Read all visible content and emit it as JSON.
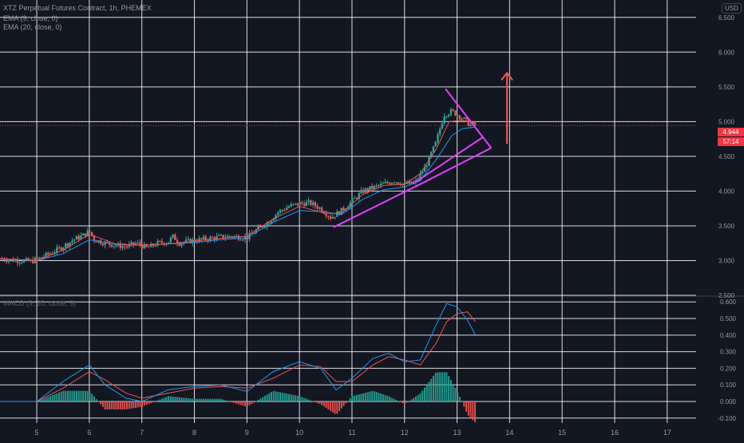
{
  "header": {
    "title": "XTZ Perpetual Futures Contract, 1h, PHEMEX",
    "ema9_label": "EMA (9, close, 0)",
    "ema20_label": "EMA (20, close, 0)",
    "macd_label": "MACD (9, 20, close, 9)",
    "currency": "USD"
  },
  "price_badges": {
    "last_price": "4.944",
    "countdown": "57:14"
  },
  "colors": {
    "background": "#131722",
    "grid": "#ffffff",
    "up": "#26a69a",
    "down": "#ef5350",
    "ema9": "#ef5350",
    "ema20": "#2196f3",
    "pattern": "#e040fb",
    "arrow": "#f05a50",
    "macd": "#2196f3",
    "signal": "#ef5350",
    "label": "#9598a1",
    "badge": "#f23645"
  },
  "chart_data": {
    "type": "candlestick",
    "title": "XTZ Perpetual Futures Contract, 1h, PHEMEX",
    "x_axis": {
      "ticks": [
        "5",
        "6",
        "7",
        "8",
        "9",
        "10",
        "11",
        "12",
        "13",
        "14",
        "15",
        "16",
        "17"
      ],
      "xlim": [
        4.3,
        17.55
      ]
    },
    "price_axis": {
      "ticks": [
        "6.500",
        "6.000",
        "5.500",
        "5.000",
        "4.500",
        "4.000",
        "3.500",
        "3.000",
        "2.500"
      ],
      "ylim": [
        2.5,
        6.75
      ]
    },
    "macd_axis": {
      "ticks": [
        "0.600",
        "0.500",
        "0.400",
        "0.300",
        "0.200",
        "0.100",
        "0.000",
        "-0.100"
      ],
      "ylim": [
        -0.13,
        0.63
      ]
    },
    "last_price": 4.944,
    "price_path": [
      [
        4.3,
        3.03
      ],
      [
        4.5,
        3.01
      ],
      [
        4.7,
        3.0
      ],
      [
        4.9,
        2.99
      ],
      [
        5.1,
        3.05
      ],
      [
        5.3,
        3.12
      ],
      [
        5.5,
        3.2
      ],
      [
        5.7,
        3.3
      ],
      [
        5.9,
        3.37
      ],
      [
        6.0,
        3.42
      ],
      [
        6.1,
        3.3
      ],
      [
        6.3,
        3.25
      ],
      [
        6.5,
        3.22
      ],
      [
        6.7,
        3.2
      ],
      [
        6.9,
        3.25
      ],
      [
        7.1,
        3.18
      ],
      [
        7.3,
        3.25
      ],
      [
        7.5,
        3.27
      ],
      [
        7.6,
        3.35
      ],
      [
        7.7,
        3.25
      ],
      [
        7.9,
        3.28
      ],
      [
        8.1,
        3.3
      ],
      [
        8.3,
        3.32
      ],
      [
        8.5,
        3.34
      ],
      [
        8.7,
        3.35
      ],
      [
        9.0,
        3.33
      ],
      [
        9.2,
        3.45
      ],
      [
        9.4,
        3.55
      ],
      [
        9.6,
        3.7
      ],
      [
        9.8,
        3.78
      ],
      [
        10.0,
        3.82
      ],
      [
        10.2,
        3.83
      ],
      [
        10.4,
        3.75
      ],
      [
        10.6,
        3.62
      ],
      [
        10.8,
        3.72
      ],
      [
        11.0,
        3.85
      ],
      [
        11.2,
        4.0
      ],
      [
        11.4,
        4.05
      ],
      [
        11.6,
        4.1
      ],
      [
        11.8,
        4.15
      ],
      [
        12.0,
        4.1
      ],
      [
        12.2,
        4.12
      ],
      [
        12.4,
        4.35
      ],
      [
        12.6,
        4.7
      ],
      [
        12.75,
        5.1
      ],
      [
        12.9,
        5.15
      ],
      [
        13.1,
        5.05
      ],
      [
        13.25,
        4.95
      ],
      [
        13.35,
        4.95
      ]
    ],
    "ema9": [
      [
        4.3,
        3.03
      ],
      [
        5.0,
        3.0
      ],
      [
        5.5,
        3.15
      ],
      [
        6.0,
        3.38
      ],
      [
        6.5,
        3.24
      ],
      [
        7.0,
        3.22
      ],
      [
        7.5,
        3.24
      ],
      [
        8.0,
        3.28
      ],
      [
        8.5,
        3.32
      ],
      [
        9.0,
        3.35
      ],
      [
        9.5,
        3.6
      ],
      [
        10.0,
        3.78
      ],
      [
        10.5,
        3.68
      ],
      [
        10.8,
        3.68
      ],
      [
        11.2,
        3.95
      ],
      [
        11.6,
        4.08
      ],
      [
        12.0,
        4.1
      ],
      [
        12.3,
        4.25
      ],
      [
        12.6,
        4.6
      ],
      [
        12.85,
        5.0
      ],
      [
        13.1,
        5.02
      ],
      [
        13.35,
        4.98
      ]
    ],
    "ema20": [
      [
        4.3,
        3.02
      ],
      [
        5.0,
        3.0
      ],
      [
        5.5,
        3.1
      ],
      [
        6.0,
        3.3
      ],
      [
        6.5,
        3.23
      ],
      [
        7.0,
        3.22
      ],
      [
        7.5,
        3.24
      ],
      [
        8.0,
        3.26
      ],
      [
        8.5,
        3.3
      ],
      [
        9.0,
        3.33
      ],
      [
        9.5,
        3.55
      ],
      [
        10.0,
        3.72
      ],
      [
        10.5,
        3.7
      ],
      [
        10.8,
        3.66
      ],
      [
        11.2,
        3.88
      ],
      [
        11.6,
        4.02
      ],
      [
        12.0,
        4.06
      ],
      [
        12.3,
        4.15
      ],
      [
        12.6,
        4.45
      ],
      [
        12.9,
        4.8
      ],
      [
        13.1,
        4.9
      ],
      [
        13.35,
        4.92
      ]
    ],
    "macd_line": [
      [
        4.3,
        0.0
      ],
      [
        5.0,
        0.0
      ],
      [
        5.5,
        0.12
      ],
      [
        6.0,
        0.22
      ],
      [
        6.3,
        0.1
      ],
      [
        6.7,
        0.02
      ],
      [
        7.0,
        0.0
      ],
      [
        7.5,
        0.07
      ],
      [
        8.0,
        0.09
      ],
      [
        8.5,
        0.1
      ],
      [
        9.0,
        0.06
      ],
      [
        9.5,
        0.18
      ],
      [
        10.0,
        0.24
      ],
      [
        10.4,
        0.2
      ],
      [
        10.7,
        0.07
      ],
      [
        11.0,
        0.14
      ],
      [
        11.4,
        0.26
      ],
      [
        11.7,
        0.29
      ],
      [
        12.0,
        0.24
      ],
      [
        12.3,
        0.25
      ],
      [
        12.6,
        0.46
      ],
      [
        12.8,
        0.59
      ],
      [
        13.0,
        0.57
      ],
      [
        13.2,
        0.49
      ],
      [
        13.35,
        0.4
      ]
    ],
    "signal_line": [
      [
        4.3,
        0.0
      ],
      [
        5.0,
        0.0
      ],
      [
        5.5,
        0.08
      ],
      [
        6.0,
        0.18
      ],
      [
        6.3,
        0.13
      ],
      [
        6.7,
        0.05
      ],
      [
        7.0,
        0.02
      ],
      [
        7.5,
        0.05
      ],
      [
        8.0,
        0.08
      ],
      [
        8.5,
        0.09
      ],
      [
        9.0,
        0.08
      ],
      [
        9.5,
        0.14
      ],
      [
        10.0,
        0.22
      ],
      [
        10.4,
        0.21
      ],
      [
        10.7,
        0.12
      ],
      [
        11.0,
        0.12
      ],
      [
        11.4,
        0.22
      ],
      [
        11.7,
        0.27
      ],
      [
        12.0,
        0.25
      ],
      [
        12.3,
        0.22
      ],
      [
        12.6,
        0.35
      ],
      [
        12.8,
        0.48
      ],
      [
        13.0,
        0.53
      ],
      [
        13.2,
        0.54
      ],
      [
        13.35,
        0.48
      ]
    ],
    "pattern": {
      "support_line": [
        [
          10.65,
          3.48
        ],
        [
          12.3,
          4.1
        ],
        [
          13.65,
          4.62
        ]
      ],
      "converging_line": [
        [
          12.15,
          4.1
        ],
        [
          13.5,
          4.78
        ]
      ],
      "upper_line": [
        [
          12.78,
          5.47
        ],
        [
          13.65,
          4.62
        ]
      ],
      "target_arrow": [
        [
          13.95,
          4.68
        ],
        [
          13.95,
          5.7
        ]
      ]
    }
  }
}
